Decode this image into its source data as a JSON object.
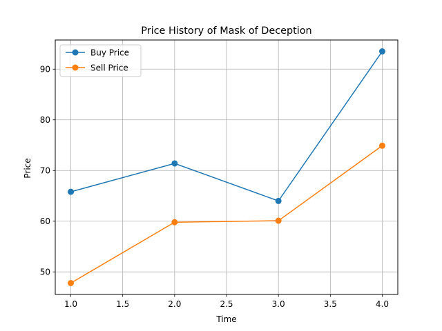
{
  "chart_data": {
    "type": "line",
    "title": "Price History of Mask of Deception",
    "xlabel": "Time",
    "ylabel": "Price",
    "x": [
      1.0,
      2.0,
      3.0,
      4.0
    ],
    "series": [
      {
        "name": "Buy Price",
        "color": "#1f77b4",
        "values": [
          65.8,
          71.4,
          64.0,
          93.5
        ]
      },
      {
        "name": "Sell Price",
        "color": "#ff7f0e",
        "values": [
          47.8,
          59.8,
          60.1,
          74.9
        ]
      }
    ],
    "xlim": [
      0.85,
      4.15
    ],
    "ylim": [
      45.55,
      95.75
    ],
    "xticks": [
      "1.0",
      "1.5",
      "2.0",
      "2.5",
      "3.0",
      "3.5",
      "4.0"
    ],
    "yticks": [
      "50",
      "60",
      "70",
      "80",
      "90"
    ],
    "grid": true,
    "legend_position": "top-left"
  }
}
